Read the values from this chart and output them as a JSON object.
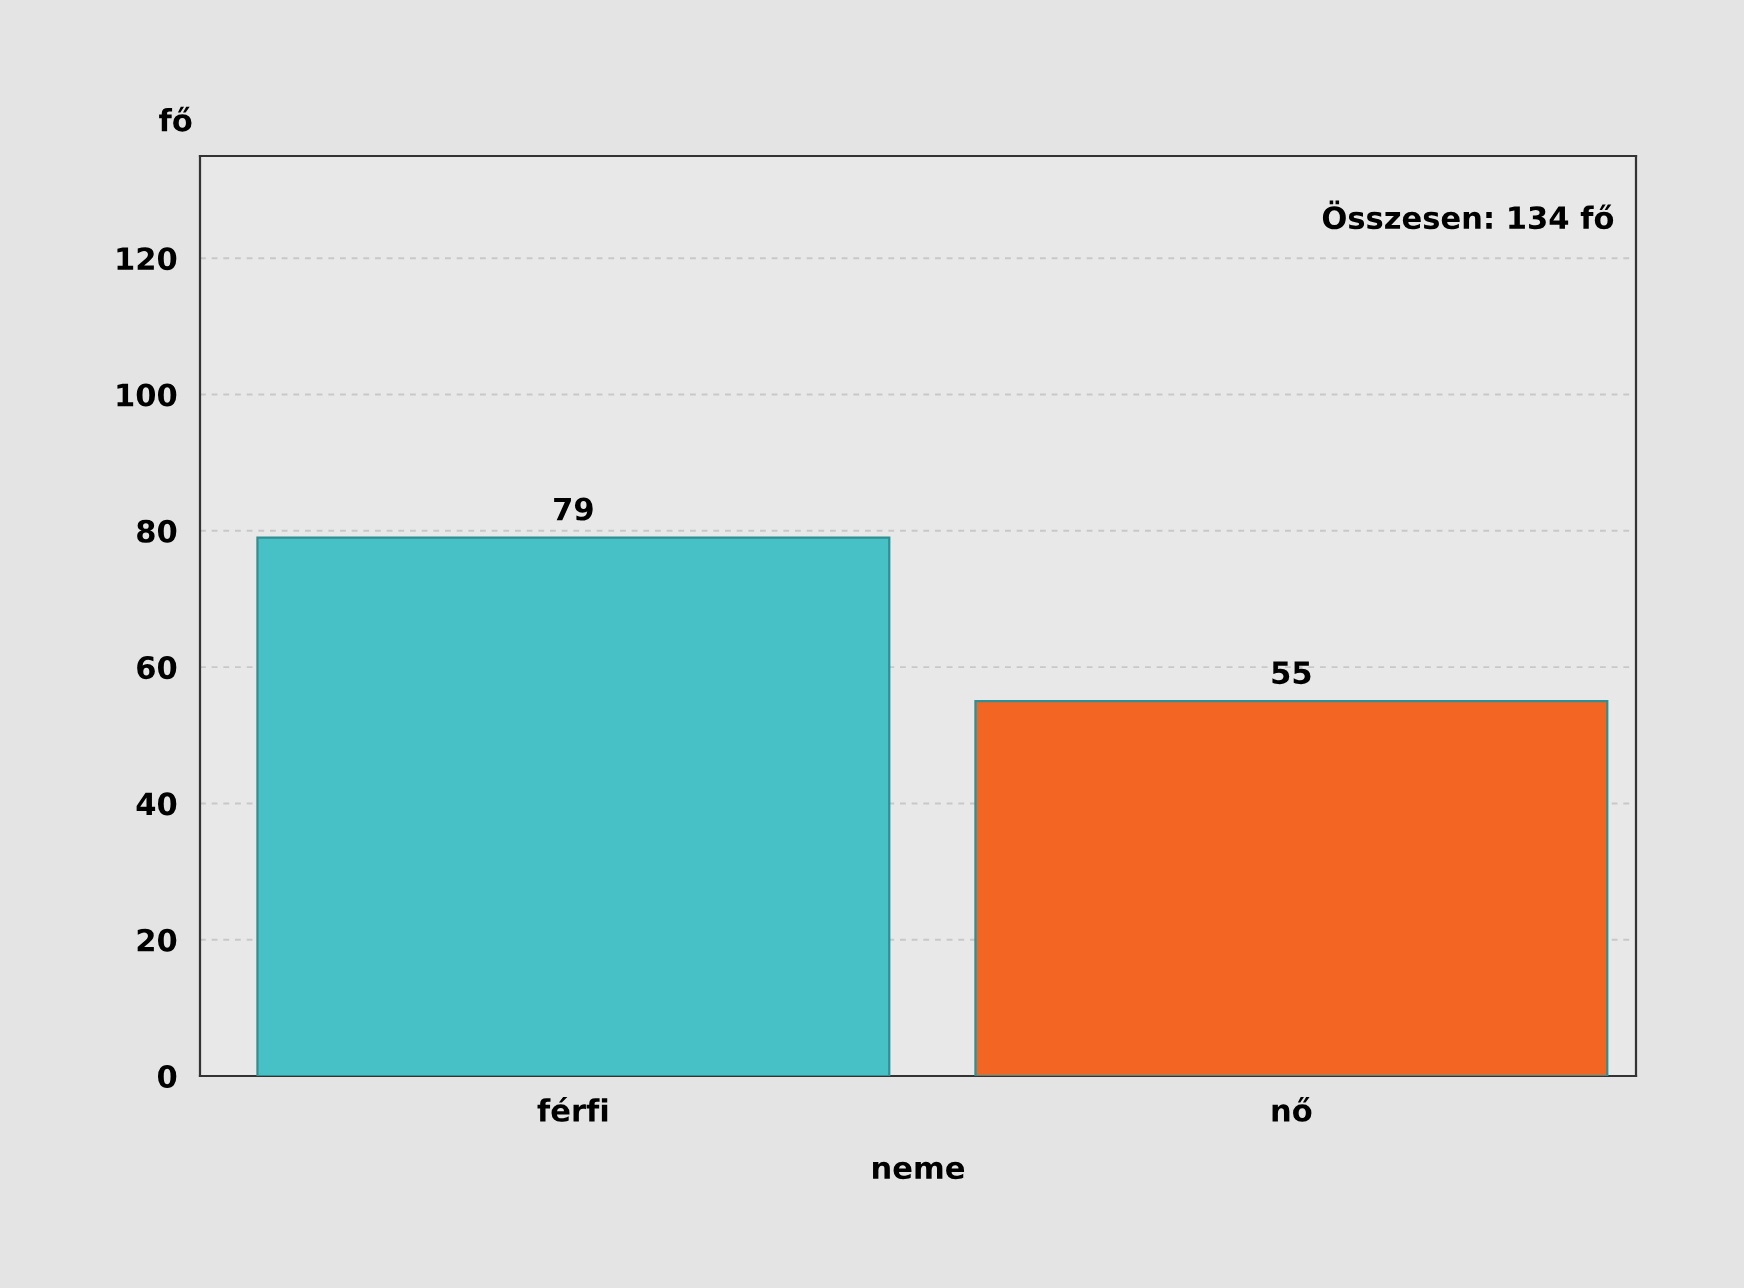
{
  "chart_data": {
    "type": "bar",
    "ylabel": "fő",
    "xlabel": "neme",
    "categories": [
      "férfi",
      "nő"
    ],
    "values": [
      79,
      55
    ],
    "colors": [
      "#47c1c6",
      "#f26522"
    ],
    "ylim": [
      0,
      135
    ],
    "yticks": [
      0,
      20,
      40,
      60,
      80,
      100,
      120
    ],
    "grid": "y",
    "data_labels": true,
    "legend": false,
    "annotations": [
      "Összesen: 134 fő"
    ]
  }
}
